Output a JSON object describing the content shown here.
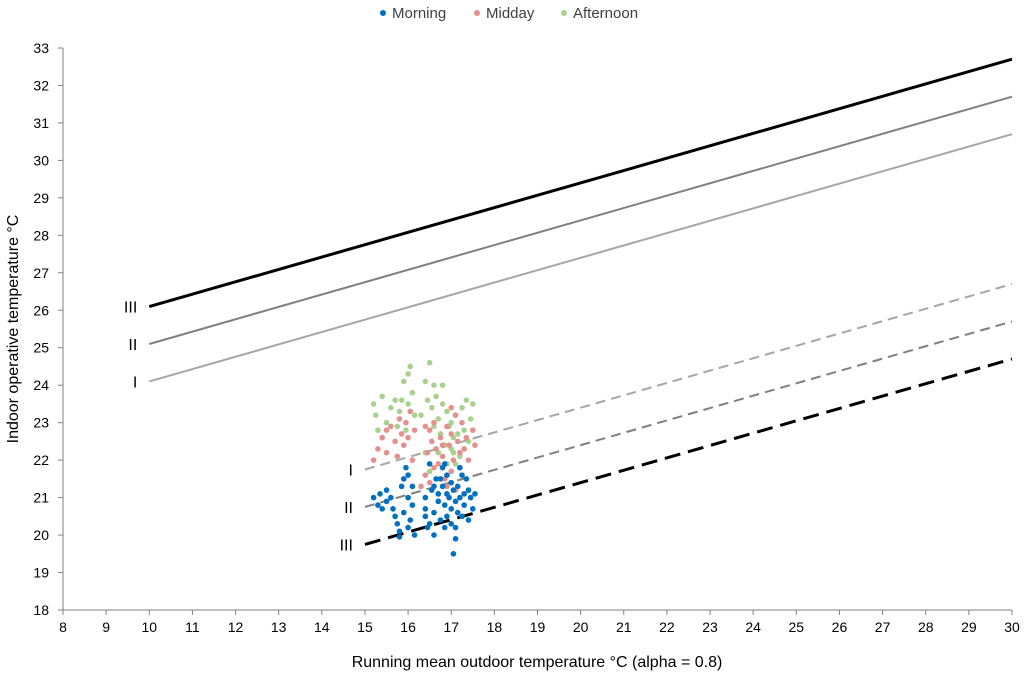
{
  "chart_data": {
    "type": "scatter",
    "title": "",
    "xlabel": "Running mean outdoor temperature °C (alpha = 0.8)",
    "ylabel": "Indoor operative temperature °C",
    "xlim": [
      8,
      30
    ],
    "ylim": [
      18,
      33
    ],
    "xticks": [
      8,
      9,
      10,
      11,
      12,
      13,
      14,
      15,
      16,
      17,
      18,
      19,
      20,
      21,
      22,
      23,
      24,
      25,
      26,
      27,
      28,
      29,
      30
    ],
    "yticks": [
      18,
      19,
      20,
      21,
      22,
      23,
      24,
      25,
      26,
      27,
      28,
      29,
      30,
      31,
      32,
      33
    ],
    "grid": false,
    "legend_position": "top-center",
    "legend": [
      "Morning",
      "Midday",
      "Afternoon"
    ],
    "colors": {
      "Morning": "#0070C0",
      "Midday": "#E6908E",
      "Afternoon": "#A9D18E"
    },
    "comfort_lines": [
      {
        "name": "III",
        "kind": "upper",
        "x": [
          10,
          30
        ],
        "y": [
          26.1,
          32.7
        ],
        "color": "#000000",
        "dashed": false,
        "width": 3
      },
      {
        "name": "II",
        "kind": "upper",
        "x": [
          10,
          30
        ],
        "y": [
          25.1,
          31.7
        ],
        "color": "#808080",
        "dashed": false,
        "width": 2
      },
      {
        "name": "I",
        "kind": "upper",
        "x": [
          10,
          30
        ],
        "y": [
          24.1,
          30.7
        ],
        "color": "#A6A6A6",
        "dashed": false,
        "width": 2
      },
      {
        "name": "I",
        "kind": "lower",
        "x": [
          15,
          30
        ],
        "y": [
          21.75,
          26.7
        ],
        "color": "#A6A6A6",
        "dashed": true,
        "width": 2
      },
      {
        "name": "II",
        "kind": "lower",
        "x": [
          15,
          30
        ],
        "y": [
          20.75,
          25.7
        ],
        "color": "#808080",
        "dashed": true,
        "width": 2
      },
      {
        "name": "III",
        "kind": "lower",
        "x": [
          15,
          30
        ],
        "y": [
          19.75,
          24.7
        ],
        "color": "#000000",
        "dashed": true,
        "width": 3
      }
    ],
    "series": [
      {
        "name": "Morning",
        "points": [
          [
            15.2,
            21.0
          ],
          [
            15.3,
            20.8
          ],
          [
            15.35,
            21.1
          ],
          [
            15.4,
            20.7
          ],
          [
            15.5,
            21.2
          ],
          [
            15.5,
            20.9
          ],
          [
            15.6,
            21.0
          ],
          [
            15.7,
            20.5
          ],
          [
            15.75,
            20.3
          ],
          [
            15.8,
            20.1
          ],
          [
            15.8,
            19.95
          ],
          [
            15.85,
            21.3
          ],
          [
            15.9,
            21.5
          ],
          [
            15.9,
            20.6
          ],
          [
            15.95,
            21.8
          ],
          [
            16.0,
            21.6
          ],
          [
            16.0,
            21.0
          ],
          [
            16.05,
            20.4
          ],
          [
            16.1,
            21.3
          ],
          [
            16.1,
            20.8
          ],
          [
            16.15,
            20.0
          ],
          [
            16.4,
            20.7
          ],
          [
            16.4,
            20.5
          ],
          [
            16.45,
            20.2
          ],
          [
            16.5,
            20.3
          ],
          [
            16.5,
            21.9
          ],
          [
            16.55,
            21.2
          ],
          [
            16.6,
            20.6
          ],
          [
            16.6,
            20.0
          ],
          [
            16.65,
            21.5
          ],
          [
            16.7,
            21.1
          ],
          [
            16.7,
            20.9
          ],
          [
            16.75,
            20.4
          ],
          [
            16.8,
            21.8
          ],
          [
            16.8,
            21.3
          ],
          [
            16.85,
            20.8
          ],
          [
            16.85,
            21.9
          ],
          [
            16.9,
            20.5
          ],
          [
            16.9,
            21.6
          ],
          [
            16.95,
            21.0
          ],
          [
            17.0,
            21.4
          ],
          [
            17.0,
            20.7
          ],
          [
            17.05,
            21.2
          ],
          [
            17.05,
            19.5
          ],
          [
            17.1,
            20.9
          ],
          [
            17.1,
            19.9
          ],
          [
            17.15,
            20.6
          ],
          [
            17.15,
            21.3
          ],
          [
            17.2,
            21.0
          ],
          [
            17.2,
            21.8
          ],
          [
            17.25,
            20.5
          ],
          [
            17.3,
            21.1
          ],
          [
            17.3,
            20.8
          ],
          [
            17.35,
            21.5
          ],
          [
            17.4,
            20.4
          ],
          [
            17.4,
            21.2
          ],
          [
            17.45,
            21.0
          ],
          [
            17.5,
            20.7
          ],
          [
            17.55,
            21.1
          ],
          [
            16.75,
            21.5
          ],
          [
            16.9,
            21.1
          ],
          [
            17.0,
            20.3
          ],
          [
            16.6,
            21.3
          ],
          [
            16.4,
            21.0
          ],
          [
            17.25,
            21.6
          ],
          [
            16.85,
            20.2
          ],
          [
            15.65,
            20.7
          ],
          [
            16.0,
            20.2
          ],
          [
            17.1,
            20.2
          ]
        ]
      },
      {
        "name": "Midday",
        "points": [
          [
            15.2,
            22.0
          ],
          [
            15.3,
            22.3
          ],
          [
            15.4,
            22.6
          ],
          [
            15.5,
            22.2
          ],
          [
            15.6,
            22.9
          ],
          [
            15.7,
            22.5
          ],
          [
            15.75,
            22.1
          ],
          [
            15.8,
            23.1
          ],
          [
            15.85,
            22.7
          ],
          [
            15.9,
            22.4
          ],
          [
            16.0,
            22.6
          ],
          [
            16.05,
            23.3
          ],
          [
            16.1,
            22.0
          ],
          [
            16.15,
            22.8
          ],
          [
            16.4,
            21.6
          ],
          [
            16.45,
            22.2
          ],
          [
            16.5,
            22.8
          ],
          [
            16.5,
            21.4
          ],
          [
            16.55,
            22.5
          ],
          [
            16.6,
            23.0
          ],
          [
            16.65,
            22.3
          ],
          [
            16.7,
            21.9
          ],
          [
            16.75,
            22.6
          ],
          [
            16.8,
            22.1
          ],
          [
            16.85,
            21.5
          ],
          [
            16.9,
            22.9
          ],
          [
            16.95,
            22.4
          ],
          [
            17.0,
            21.7
          ],
          [
            17.0,
            22.7
          ],
          [
            17.05,
            22.0
          ],
          [
            17.1,
            21.2
          ],
          [
            17.1,
            23.2
          ],
          [
            17.15,
            22.5
          ],
          [
            17.2,
            21.8
          ],
          [
            17.25,
            23.0
          ],
          [
            17.3,
            22.3
          ],
          [
            17.35,
            22.6
          ],
          [
            17.4,
            22.0
          ],
          [
            17.5,
            22.8
          ],
          [
            17.55,
            22.4
          ],
          [
            16.4,
            22.9
          ],
          [
            16.6,
            21.8
          ],
          [
            16.8,
            22.4
          ],
          [
            17.0,
            23.4
          ],
          [
            16.3,
            21.3
          ],
          [
            16.7,
            21.1
          ],
          [
            17.2,
            22.2
          ],
          [
            15.5,
            22.8
          ],
          [
            16.9,
            21.3
          ],
          [
            15.95,
            23.0
          ]
        ]
      },
      {
        "name": "Afternoon",
        "points": [
          [
            15.2,
            23.5
          ],
          [
            15.25,
            23.2
          ],
          [
            15.3,
            22.8
          ],
          [
            15.4,
            23.7
          ],
          [
            15.5,
            23.0
          ],
          [
            15.6,
            23.4
          ],
          [
            15.7,
            23.6
          ],
          [
            15.75,
            22.9
          ],
          [
            15.8,
            23.3
          ],
          [
            15.85,
            23.6
          ],
          [
            15.9,
            24.1
          ],
          [
            16.0,
            24.3
          ],
          [
            16.0,
            23.5
          ],
          [
            16.05,
            24.5
          ],
          [
            16.1,
            23.8
          ],
          [
            16.15,
            23.2
          ],
          [
            16.4,
            24.1
          ],
          [
            16.45,
            23.6
          ],
          [
            16.5,
            24.6
          ],
          [
            16.55,
            23.4
          ],
          [
            16.6,
            24.0
          ],
          [
            16.6,
            22.9
          ],
          [
            16.65,
            23.7
          ],
          [
            16.7,
            23.1
          ],
          [
            16.75,
            22.7
          ],
          [
            16.8,
            23.5
          ],
          [
            16.85,
            22.4
          ],
          [
            16.9,
            23.3
          ],
          [
            16.95,
            22.9
          ],
          [
            17.0,
            22.3
          ],
          [
            17.0,
            23.0
          ],
          [
            17.05,
            22.6
          ],
          [
            17.1,
            21.9
          ],
          [
            17.1,
            23.2
          ],
          [
            17.15,
            22.7
          ],
          [
            17.2,
            22.1
          ],
          [
            17.25,
            23.4
          ],
          [
            17.3,
            22.8
          ],
          [
            17.35,
            23.6
          ],
          [
            17.4,
            22.5
          ],
          [
            17.45,
            23.1
          ],
          [
            17.5,
            23.5
          ],
          [
            16.4,
            22.2
          ],
          [
            16.5,
            21.7
          ],
          [
            16.7,
            22.2
          ],
          [
            16.9,
            21.9
          ],
          [
            17.05,
            22.2
          ],
          [
            16.3,
            23.2
          ],
          [
            15.95,
            22.8
          ],
          [
            16.8,
            24.0
          ]
        ]
      }
    ]
  }
}
